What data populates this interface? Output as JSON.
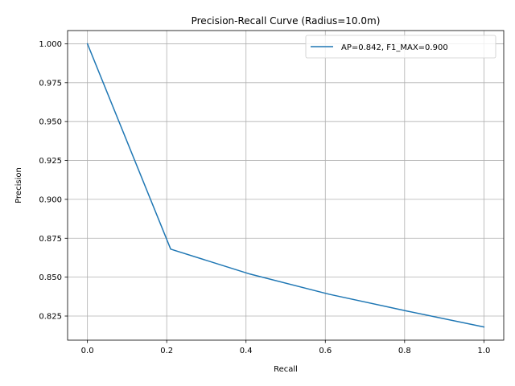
{
  "chart_data": {
    "type": "line",
    "title": "Precision-Recall Curve (Radius=10.0m)",
    "xlabel": "Recall",
    "ylabel": "Precision",
    "xlim": [
      -0.05,
      1.05
    ],
    "ylim": [
      0.8095,
      1.0085
    ],
    "xticks": [
      0.0,
      0.2,
      0.4,
      0.6,
      0.8,
      1.0
    ],
    "xtick_labels": [
      "0.0",
      "0.2",
      "0.4",
      "0.6",
      "0.8",
      "1.0"
    ],
    "yticks": [
      0.825,
      0.85,
      0.875,
      0.9,
      0.925,
      0.95,
      0.975,
      1.0
    ],
    "ytick_labels": [
      "0.825",
      "0.850",
      "0.875",
      "0.900",
      "0.925",
      "0.950",
      "0.975",
      "1.000"
    ],
    "grid": true,
    "legend_position": "top-right",
    "series": [
      {
        "name": "AP=0.842, F1_MAX=0.900",
        "color": "#1f77b4",
        "x": [
          0.0,
          0.21,
          0.41,
          0.61,
          0.81,
          1.0
        ],
        "y": [
          1.0,
          0.868,
          0.852,
          0.839,
          0.828,
          0.818
        ]
      }
    ]
  }
}
